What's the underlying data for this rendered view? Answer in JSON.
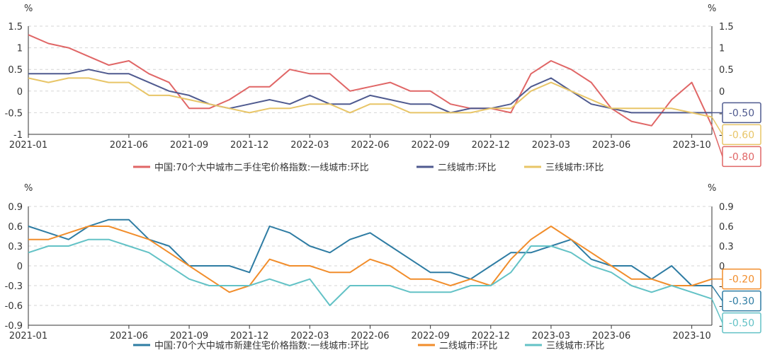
{
  "chart_data": [
    {
      "type": "line",
      "y_unit_left": "%",
      "y_unit_right": "%",
      "ylim": [
        -1,
        1.5
      ],
      "yticks": [
        "1.5",
        "1",
        "0.5",
        "0",
        "-0.5",
        "-1"
      ],
      "yticks_right": [
        "1.5",
        "1",
        "0.5",
        "0",
        "-0.5",
        "-1"
      ],
      "x_tick_labels": [
        "2021-01",
        "2021-06",
        "2021-09",
        "2021-12",
        "2022-03",
        "2022-06",
        "2022-09",
        "2022-12",
        "2023-03",
        "2023-06",
        "2023-10"
      ],
      "grid": "horizontal-dashed",
      "legend_position": "bottom",
      "series": [
        {
          "name": "中国:70个大中城市二手住宅价格指数:一线城市:环比",
          "color": "#e06666",
          "end_label": "-0.80",
          "values": [
            1.3,
            1.1,
            1.0,
            0.8,
            0.6,
            0.7,
            0.4,
            0.2,
            -0.4,
            -0.4,
            -0.2,
            0.1,
            0.1,
            0.5,
            0.4,
            0.4,
            0.0,
            0.1,
            0.2,
            0.0,
            0.0,
            -0.3,
            -0.4,
            -0.4,
            -0.5,
            0.4,
            0.7,
            0.5,
            0.2,
            -0.4,
            -0.7,
            -0.8,
            -0.2,
            0.2,
            -0.8
          ]
        },
        {
          "name": "二线城市:环比",
          "color": "#4f5a8f",
          "end_label": "-0.50",
          "values": [
            0.4,
            0.4,
            0.4,
            0.5,
            0.4,
            0.4,
            0.2,
            0.0,
            -0.1,
            -0.3,
            -0.4,
            -0.3,
            -0.2,
            -0.3,
            -0.1,
            -0.3,
            -0.3,
            -0.1,
            -0.2,
            -0.3,
            -0.3,
            -0.5,
            -0.4,
            -0.4,
            -0.3,
            0.1,
            0.3,
            0.0,
            -0.3,
            -0.4,
            -0.5,
            -0.5,
            -0.5,
            -0.5,
            -0.5
          ]
        },
        {
          "name": "三线城市:环比",
          "color": "#e8c567",
          "end_label": "-0.60",
          "values": [
            0.3,
            0.2,
            0.3,
            0.3,
            0.2,
            0.2,
            -0.1,
            -0.1,
            -0.2,
            -0.3,
            -0.4,
            -0.5,
            -0.4,
            -0.4,
            -0.3,
            -0.3,
            -0.5,
            -0.3,
            -0.3,
            -0.5,
            -0.5,
            -0.5,
            -0.5,
            -0.4,
            -0.4,
            0.0,
            0.2,
            0.0,
            -0.2,
            -0.4,
            -0.4,
            -0.4,
            -0.4,
            -0.5,
            -0.6
          ]
        }
      ]
    },
    {
      "type": "line",
      "y_unit_left": "%",
      "y_unit_right": "%",
      "ylim": [
        -0.9,
        0.9
      ],
      "yticks": [
        "0.9",
        "0.6",
        "0.3",
        "0",
        "-0.3",
        "-0.6",
        "-0.9"
      ],
      "yticks_right": [
        "0.9",
        "0.6",
        "0.3",
        "0",
        "-0.3",
        "-0.6",
        "-0.9"
      ],
      "x_tick_labels": [
        "2021-01",
        "2021-06",
        "2021-09",
        "2021-12",
        "2022-03",
        "2022-06",
        "2022-09",
        "2022-12",
        "2023-03",
        "2023-06",
        "2023-10"
      ],
      "grid": "horizontal-dashed",
      "legend_position": "bottom",
      "series": [
        {
          "name": "中国:70个大中城市新建住宅价格指数:一线城市:环比",
          "color": "#2e7ca3",
          "end_label": "-0.30",
          "values": [
            0.6,
            0.5,
            0.4,
            0.6,
            0.7,
            0.7,
            0.4,
            0.3,
            0.0,
            0.0,
            0.0,
            -0.1,
            0.6,
            0.5,
            0.3,
            0.2,
            0.4,
            0.5,
            0.3,
            0.1,
            -0.1,
            -0.1,
            -0.2,
            0.0,
            0.2,
            0.2,
            0.3,
            0.4,
            0.1,
            0.0,
            0.0,
            -0.2,
            0.0,
            -0.3,
            -0.3
          ]
        },
        {
          "name": "二线城市:环比",
          "color": "#f18d2b",
          "end_label": "-0.20",
          "values": [
            0.4,
            0.4,
            0.5,
            0.6,
            0.6,
            0.5,
            0.4,
            0.2,
            0.0,
            -0.2,
            -0.4,
            -0.3,
            0.1,
            0.0,
            0.0,
            -0.1,
            -0.1,
            0.1,
            0.0,
            -0.2,
            -0.2,
            -0.3,
            -0.2,
            -0.3,
            0.1,
            0.4,
            0.6,
            0.4,
            0.2,
            0.0,
            -0.2,
            -0.2,
            -0.3,
            -0.3,
            -0.2
          ]
        },
        {
          "name": "三线城市:环比",
          "color": "#63c2c6",
          "end_label": "-0.50",
          "values": [
            0.2,
            0.3,
            0.3,
            0.4,
            0.4,
            0.3,
            0.2,
            0.0,
            -0.2,
            -0.3,
            -0.3,
            -0.3,
            -0.2,
            -0.3,
            -0.2,
            -0.6,
            -0.3,
            -0.3,
            -0.3,
            -0.4,
            -0.4,
            -0.4,
            -0.3,
            -0.3,
            -0.1,
            0.3,
            0.3,
            0.2,
            0.0,
            -0.1,
            -0.3,
            -0.4,
            -0.3,
            -0.4,
            -0.5
          ]
        }
      ]
    }
  ]
}
